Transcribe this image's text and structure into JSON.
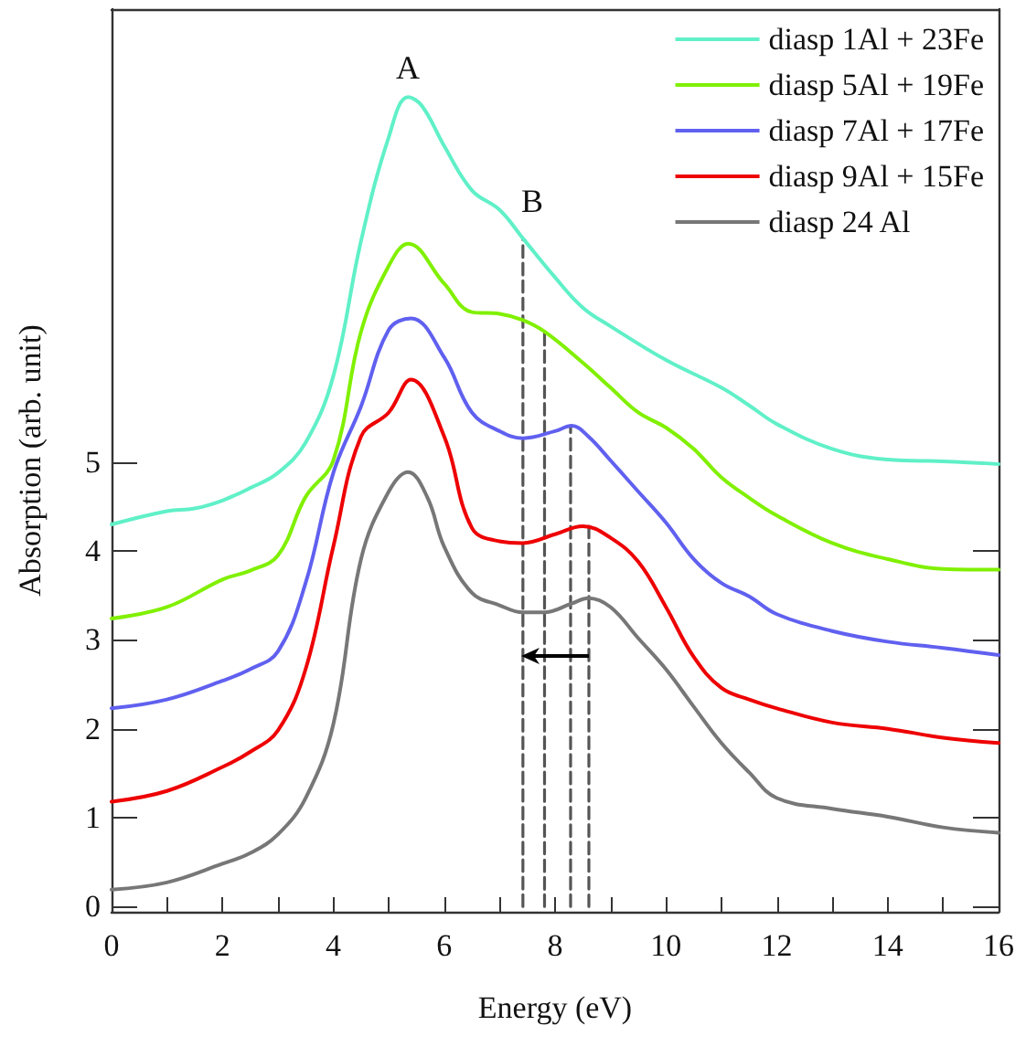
{
  "chart_data": {
    "type": "line",
    "xlabel": "Energy (eV)",
    "ylabel": "Absorption (arb. unit)",
    "xlim": [
      0,
      16
    ],
    "ylim": [
      -0.06,
      10.1
    ],
    "xticks": [
      0,
      {
        "value": 1,
        "label": null
      },
      2,
      {
        "value": 3,
        "label": null
      },
      4,
      {
        "value": 5,
        "label": null
      },
      6,
      {
        "value": 7,
        "label": null
      },
      8,
      {
        "value": 9,
        "label": null
      },
      10,
      {
        "value": 11,
        "label": null
      },
      12,
      {
        "value": 13,
        "label": null
      },
      14,
      {
        "value": 15,
        "label": null
      },
      16
    ],
    "yticks": [
      0,
      1,
      2,
      3,
      4,
      5
    ],
    "grid": false,
    "legend": "top right",
    "marker": "none",
    "line_style": "solid",
    "annotations": [
      "A",
      "B"
    ],
    "series": [
      {
        "name": "diasp 1Al + 23Fe",
        "color": "#60f0c8",
        "x": [
          0,
          1,
          1.5,
          2,
          2.5,
          3,
          3.5,
          4,
          4.5,
          5,
          5.35,
          5.6,
          6,
          6.5,
          7,
          7.42,
          8,
          8.5,
          9,
          10,
          11,
          11.5,
          12,
          13,
          14,
          15,
          16
        ],
        "values": [
          4.3,
          4.45,
          4.48,
          4.57,
          4.71,
          4.88,
          5.22,
          5.97,
          7.49,
          8.66,
          9.11,
          9.01,
          8.56,
          8.06,
          7.84,
          7.52,
          7.08,
          6.74,
          6.53,
          6.15,
          5.84,
          5.64,
          5.43,
          5.15,
          5.03,
          5.01,
          4.98
        ]
      },
      {
        "name": "diasp 5Al + 19Fe",
        "color": "#80f000",
        "x": [
          0,
          1,
          2,
          2.5,
          3,
          3.5,
          4,
          4.5,
          5,
          5.35,
          6,
          6.5,
          7,
          7.42,
          7.81,
          8.5,
          9,
          9.5,
          10,
          10.5,
          11,
          11.5,
          12,
          13,
          14,
          15,
          16
        ],
        "values": [
          3.24,
          3.37,
          3.68,
          3.78,
          3.95,
          4.61,
          5.02,
          6.47,
          7.21,
          7.46,
          7.01,
          6.69,
          6.67,
          6.6,
          6.47,
          6.12,
          5.84,
          5.56,
          5.39,
          5.15,
          4.83,
          4.6,
          4.4,
          4.09,
          3.91,
          3.8,
          3.79
        ]
      },
      {
        "name": "diasp 7Al + 17Fe",
        "color": "#6060f0",
        "x": [
          0,
          1,
          2,
          2.5,
          3,
          3.5,
          4,
          4.5,
          5,
          5.4,
          6,
          6.5,
          7,
          7.42,
          8,
          8.3,
          8.6,
          9,
          9.5,
          10,
          10.5,
          11,
          11.5,
          12,
          13,
          14,
          15,
          16
        ],
        "values": [
          2.23,
          2.33,
          2.54,
          2.67,
          2.87,
          3.64,
          4.88,
          5.63,
          6.49,
          6.62,
          6.18,
          5.56,
          5.35,
          5.27,
          5.35,
          5.41,
          5.29,
          5.02,
          4.67,
          4.32,
          3.91,
          3.64,
          3.49,
          3.29,
          3.1,
          2.98,
          2.91,
          2.83
        ]
      },
      {
        "name": "diasp 9Al + 15Fe",
        "color": "#ee0000",
        "x": [
          0,
          1,
          2,
          2.5,
          3,
          3.5,
          4,
          4.5,
          5,
          5.4,
          6,
          6.5,
          7,
          7.42,
          8,
          8.5,
          9,
          9.5,
          10,
          10.5,
          11,
          11.5,
          12,
          13,
          14,
          15,
          16
        ],
        "values": [
          1.18,
          1.3,
          1.57,
          1.74,
          1.98,
          2.67,
          4.05,
          5.29,
          5.56,
          5.93,
          5.29,
          4.26,
          4.11,
          4.09,
          4.19,
          4.28,
          4.15,
          3.88,
          3.37,
          2.81,
          2.46,
          2.33,
          2.23,
          2.07,
          2.0,
          1.9,
          1.84
        ]
      },
      {
        "name": "diasp 24 Al",
        "color": "#777777",
        "x": [
          0,
          1,
          2,
          2.5,
          3,
          3.5,
          4,
          4.5,
          5,
          5.35,
          5.7,
          6,
          6.5,
          7,
          7.42,
          7.8,
          8.3,
          8.6,
          9,
          9.5,
          10,
          10.5,
          11,
          11.5,
          12,
          13,
          14,
          15,
          16
        ],
        "values": [
          0.19,
          0.27,
          0.48,
          0.6,
          0.81,
          1.22,
          2.05,
          3.91,
          4.67,
          4.89,
          4.6,
          4.05,
          3.53,
          3.39,
          3.31,
          3.31,
          3.41,
          3.47,
          3.37,
          3.02,
          2.67,
          2.25,
          1.84,
          1.51,
          1.22,
          1.1,
          1.01,
          0.89,
          0.83
        ]
      },
      {
        "color": "#555555",
        "line_style": "dashed",
        "x": [
          7.42,
          7.42
        ],
        "values": [
          0,
          7.52
        ]
      },
      {
        "color": "#555555",
        "line_style": "dashed",
        "x": [
          7.81,
          7.81
        ],
        "values": [
          0,
          6.47
        ]
      },
      {
        "color": "#555555",
        "line_style": "dashed",
        "x": [
          8.28,
          8.28
        ],
        "values": [
          0,
          5.41
        ]
      },
      {
        "color": "#555555",
        "line_style": "dashed",
        "x": [
          8.61,
          8.61
        ],
        "values": [
          0,
          4.28
        ]
      }
    ]
  }
}
